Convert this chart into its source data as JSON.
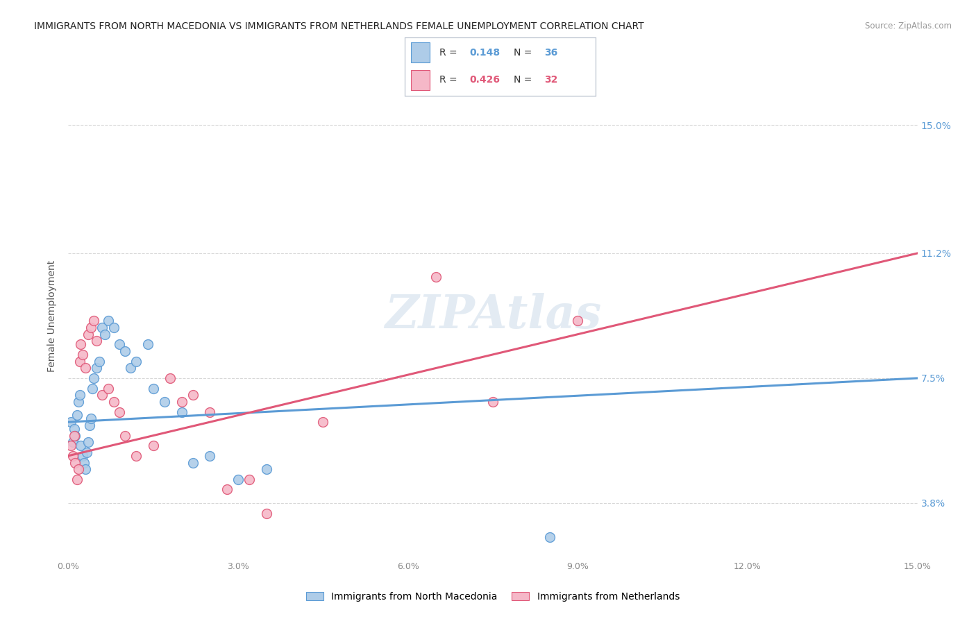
{
  "title": "IMMIGRANTS FROM NORTH MACEDONIA VS IMMIGRANTS FROM NETHERLANDS FEMALE UNEMPLOYMENT CORRELATION CHART",
  "source": "Source: ZipAtlas.com",
  "ylabel": "Female Unemployment",
  "xlim": [
    0,
    15
  ],
  "ylim": [
    2.2,
    16.5
  ],
  "ytick_labels": [
    "3.8%",
    "7.5%",
    "11.2%",
    "15.0%"
  ],
  "ytick_values": [
    3.8,
    7.5,
    11.2,
    15.0
  ],
  "xtick_values": [
    0,
    3,
    6,
    9,
    12,
    15
  ],
  "xtick_labels": [
    "0.0%",
    "3.0%",
    "6.0%",
    "9.0%",
    "12.0%",
    "15.0%"
  ],
  "series1_label": "Immigrants from North Macedonia",
  "series2_label": "Immigrants from Netherlands",
  "series1_color": "#aecce8",
  "series2_color": "#f5b8c8",
  "series1_edge_color": "#5b9bd5",
  "series2_edge_color": "#e05878",
  "r1_color": "#5b9bd5",
  "r2_color": "#e05878",
  "legend_r1_val": "0.148",
  "legend_n1_val": "36",
  "legend_r2_val": "0.426",
  "legend_n2_val": "32",
  "series1_x": [
    0.05,
    0.08,
    0.1,
    0.12,
    0.15,
    0.18,
    0.2,
    0.22,
    0.25,
    0.28,
    0.3,
    0.32,
    0.35,
    0.38,
    0.4,
    0.42,
    0.45,
    0.5,
    0.55,
    0.6,
    0.65,
    0.7,
    0.8,
    0.9,
    1.0,
    1.1,
    1.2,
    1.4,
    1.5,
    1.7,
    2.0,
    2.2,
    2.5,
    3.0,
    3.5,
    8.5
  ],
  "series1_y": [
    6.2,
    5.6,
    6.0,
    5.8,
    6.4,
    6.8,
    7.0,
    5.5,
    5.2,
    5.0,
    4.8,
    5.3,
    5.6,
    6.1,
    6.3,
    7.2,
    7.5,
    7.8,
    8.0,
    9.0,
    8.8,
    9.2,
    9.0,
    8.5,
    8.3,
    7.8,
    8.0,
    8.5,
    7.2,
    6.8,
    6.5,
    5.0,
    5.2,
    4.5,
    4.8,
    2.8
  ],
  "series2_x": [
    0.05,
    0.08,
    0.1,
    0.12,
    0.15,
    0.18,
    0.2,
    0.22,
    0.25,
    0.3,
    0.35,
    0.4,
    0.45,
    0.5,
    0.6,
    0.7,
    0.8,
    0.9,
    1.0,
    1.2,
    1.5,
    1.8,
    2.0,
    2.2,
    2.5,
    2.8,
    3.2,
    3.5,
    4.5,
    6.5,
    7.5,
    9.0
  ],
  "series2_y": [
    5.5,
    5.2,
    5.8,
    5.0,
    4.5,
    4.8,
    8.0,
    8.5,
    8.2,
    7.8,
    8.8,
    9.0,
    9.2,
    8.6,
    7.0,
    7.2,
    6.8,
    6.5,
    5.8,
    5.2,
    5.5,
    7.5,
    6.8,
    7.0,
    6.5,
    4.2,
    4.5,
    3.5,
    6.2,
    10.5,
    6.8,
    9.2
  ],
  "line1_start_x": 0.0,
  "line1_start_y": 6.2,
  "line1_end_x": 15.0,
  "line1_end_y": 7.5,
  "line2_start_x": 0.0,
  "line2_start_y": 5.2,
  "line2_end_x": 15.0,
  "line2_end_y": 11.2,
  "watermark": "ZIPAtlas",
  "background_color": "#ffffff",
  "grid_color": "#d8d8d8",
  "marker_size": 100
}
